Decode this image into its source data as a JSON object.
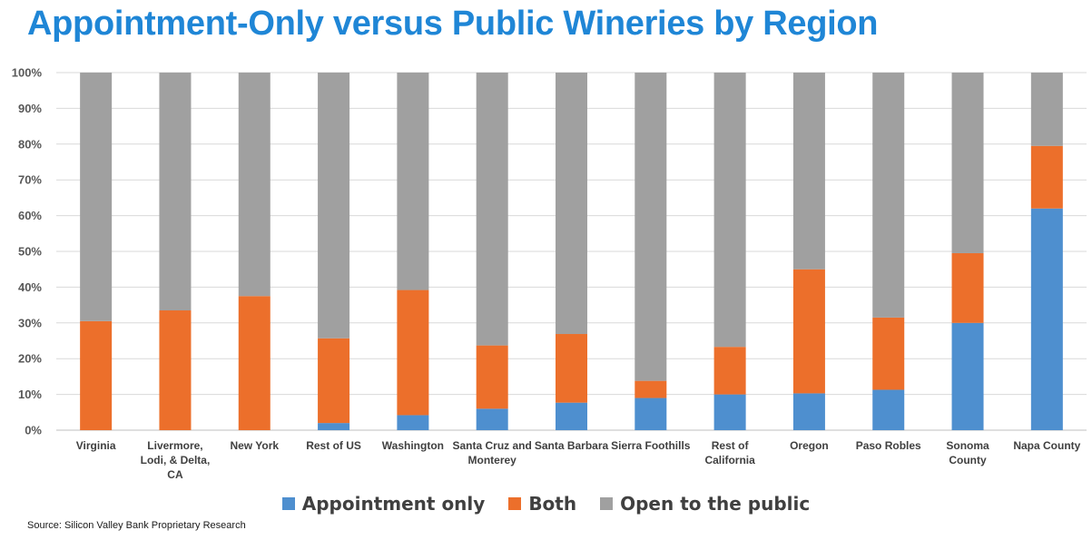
{
  "chart_data": {
    "type": "bar",
    "stacked": true,
    "title": "Appointment-Only versus Public Wineries by Region",
    "xlabel": "",
    "ylabel": "",
    "ylim": [
      0,
      100
    ],
    "y_ticks": [
      "0%",
      "10%",
      "20%",
      "30%",
      "40%",
      "50%",
      "60%",
      "70%",
      "80%",
      "90%",
      "100%"
    ],
    "grid": true,
    "legend_position": "bottom",
    "categories": [
      "Virginia",
      "Livermore, Lodi, & Delta, CA",
      "New York",
      "Rest of US",
      "Washington",
      "Santa Cruz and Monterey",
      "Santa Barbara",
      "Sierra Foothills",
      "Rest of California",
      "Oregon",
      "Paso Robles",
      "Sonoma County",
      "Napa County"
    ],
    "category_lines": [
      [
        "Virginia"
      ],
      [
        "Livermore,",
        "Lodi, & Delta,",
        "CA"
      ],
      [
        "New York"
      ],
      [
        "Rest of US"
      ],
      [
        "Washington"
      ],
      [
        "Santa Cruz and",
        "Monterey"
      ],
      [
        "Santa Barbara"
      ],
      [
        "Sierra Foothills"
      ],
      [
        "Rest of",
        "California"
      ],
      [
        "Oregon"
      ],
      [
        "Paso Robles"
      ],
      [
        "Sonoma",
        "County"
      ],
      [
        "Napa County"
      ]
    ],
    "series": [
      {
        "name": "Appointment only",
        "color": "#4e8fcf",
        "values": [
          0,
          0,
          0,
          2,
          4.2,
          6,
          7.7,
          9,
          10,
          10.3,
          11.3,
          30,
          62
        ]
      },
      {
        "name": "Both",
        "color": "#ec6f2b",
        "values": [
          30.5,
          33.5,
          37.5,
          23.7,
          35,
          17.7,
          19.2,
          4.8,
          13.3,
          34.7,
          20.2,
          19.5,
          17.5
        ]
      },
      {
        "name": "Open to the public",
        "color": "#a0a0a0",
        "values": [
          69.5,
          66.5,
          62.5,
          74.3,
          60.8,
          76.3,
          73.1,
          86.2,
          76.7,
          55,
          68.5,
          50.5,
          20.5
        ]
      }
    ]
  },
  "source": "Source: Silicon Valley Bank Proprietary Research"
}
